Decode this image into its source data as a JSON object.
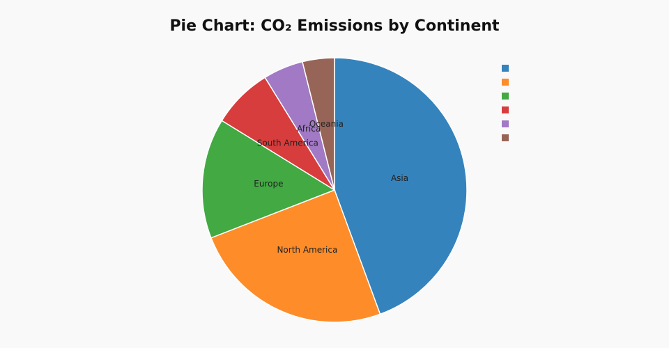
{
  "chart_data": {
    "type": "pie",
    "title": "Pie Chart: CO₂ Emissions by Continent",
    "categories": [
      "Asia",
      "North America",
      "Europe",
      "South America",
      "Africa",
      "Oceania"
    ],
    "values": [
      44.4,
      24.7,
      14.7,
      7.4,
      4.9,
      3.9
    ],
    "colors": [
      "#3583bc",
      "#fe8c29",
      "#42a943",
      "#d73d3d",
      "#a179c4",
      "#976558"
    ],
    "legend": "top-right"
  }
}
